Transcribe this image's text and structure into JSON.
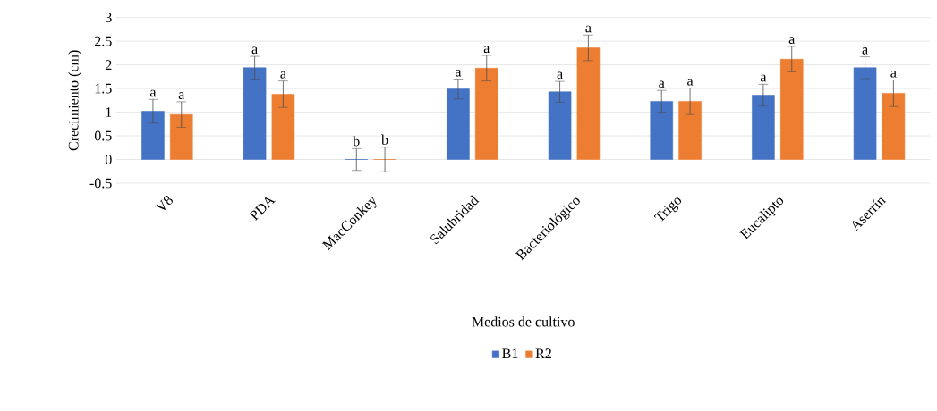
{
  "chart_data": {
    "type": "bar",
    "xlabel": "Medios de cultivo",
    "ylabel": "Crecimiento (cm)",
    "categories": [
      "V8",
      "PDA",
      "MacConkey",
      "Salubridad",
      "Bacteriológico",
      "Trigo",
      "Eucalipto",
      "Aserrín"
    ],
    "series": [
      {
        "name": "B1",
        "color": "#4472c4",
        "values": [
          1.02,
          1.94,
          0,
          1.49,
          1.43,
          1.23,
          1.36,
          1.94
        ],
        "errors": [
          0.25,
          0.24,
          0.23,
          0.21,
          0.22,
          0.23,
          0.23,
          0.23
        ],
        "value_labels": [
          "a",
          "a",
          "b",
          "a",
          "a",
          "a",
          "a",
          "a"
        ]
      },
      {
        "name": "R2",
        "color": "#ed7d31",
        "values": [
          0.95,
          1.38,
          0,
          1.93,
          2.36,
          1.23,
          2.12,
          1.4
        ],
        "errors": [
          0.27,
          0.28,
          0.26,
          0.27,
          0.27,
          0.28,
          0.27,
          0.28
        ],
        "value_labels": [
          "a",
          "a",
          "b",
          "a",
          "a",
          "a",
          "a",
          "a"
        ]
      }
    ],
    "ylim": [
      -0.5,
      3
    ],
    "yticks": [
      -0.5,
      0,
      0.5,
      1,
      1.5,
      2,
      2.5,
      3
    ],
    "grid": "y",
    "legend": "bottom"
  }
}
